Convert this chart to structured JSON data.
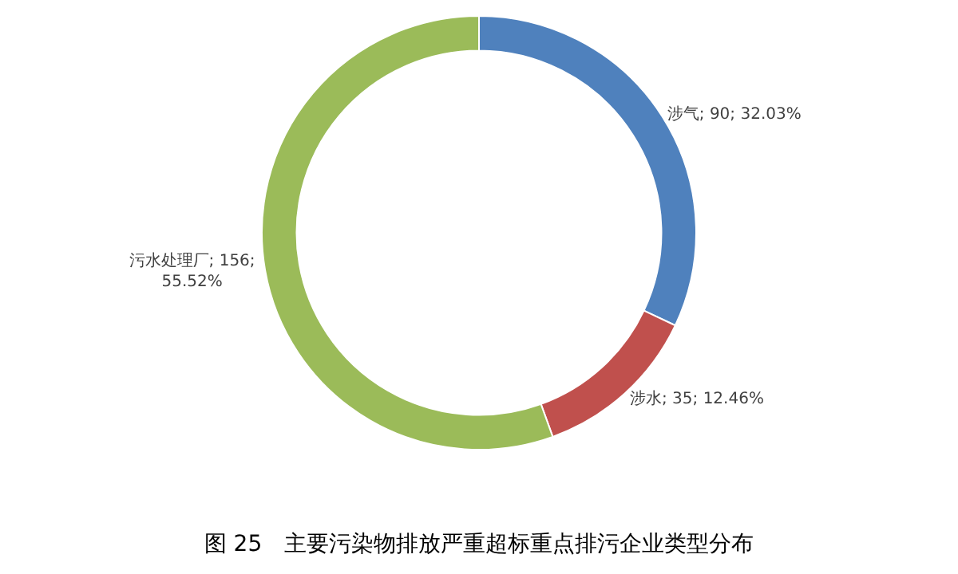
{
  "chart_data": {
    "type": "donut",
    "title": "图 25　主要污染物排放严重超标重点排污企业类型分布",
    "categories": [
      "涉气",
      "涉水",
      "污水处理厂"
    ],
    "values": [
      90,
      35,
      156
    ],
    "colors": [
      "#4f81bd",
      "#c0504d",
      "#9bbb59"
    ],
    "value_labels": [
      "90; 32.03%",
      "35; 12.46%",
      "156;\n55.52%"
    ],
    "legend": false
  }
}
